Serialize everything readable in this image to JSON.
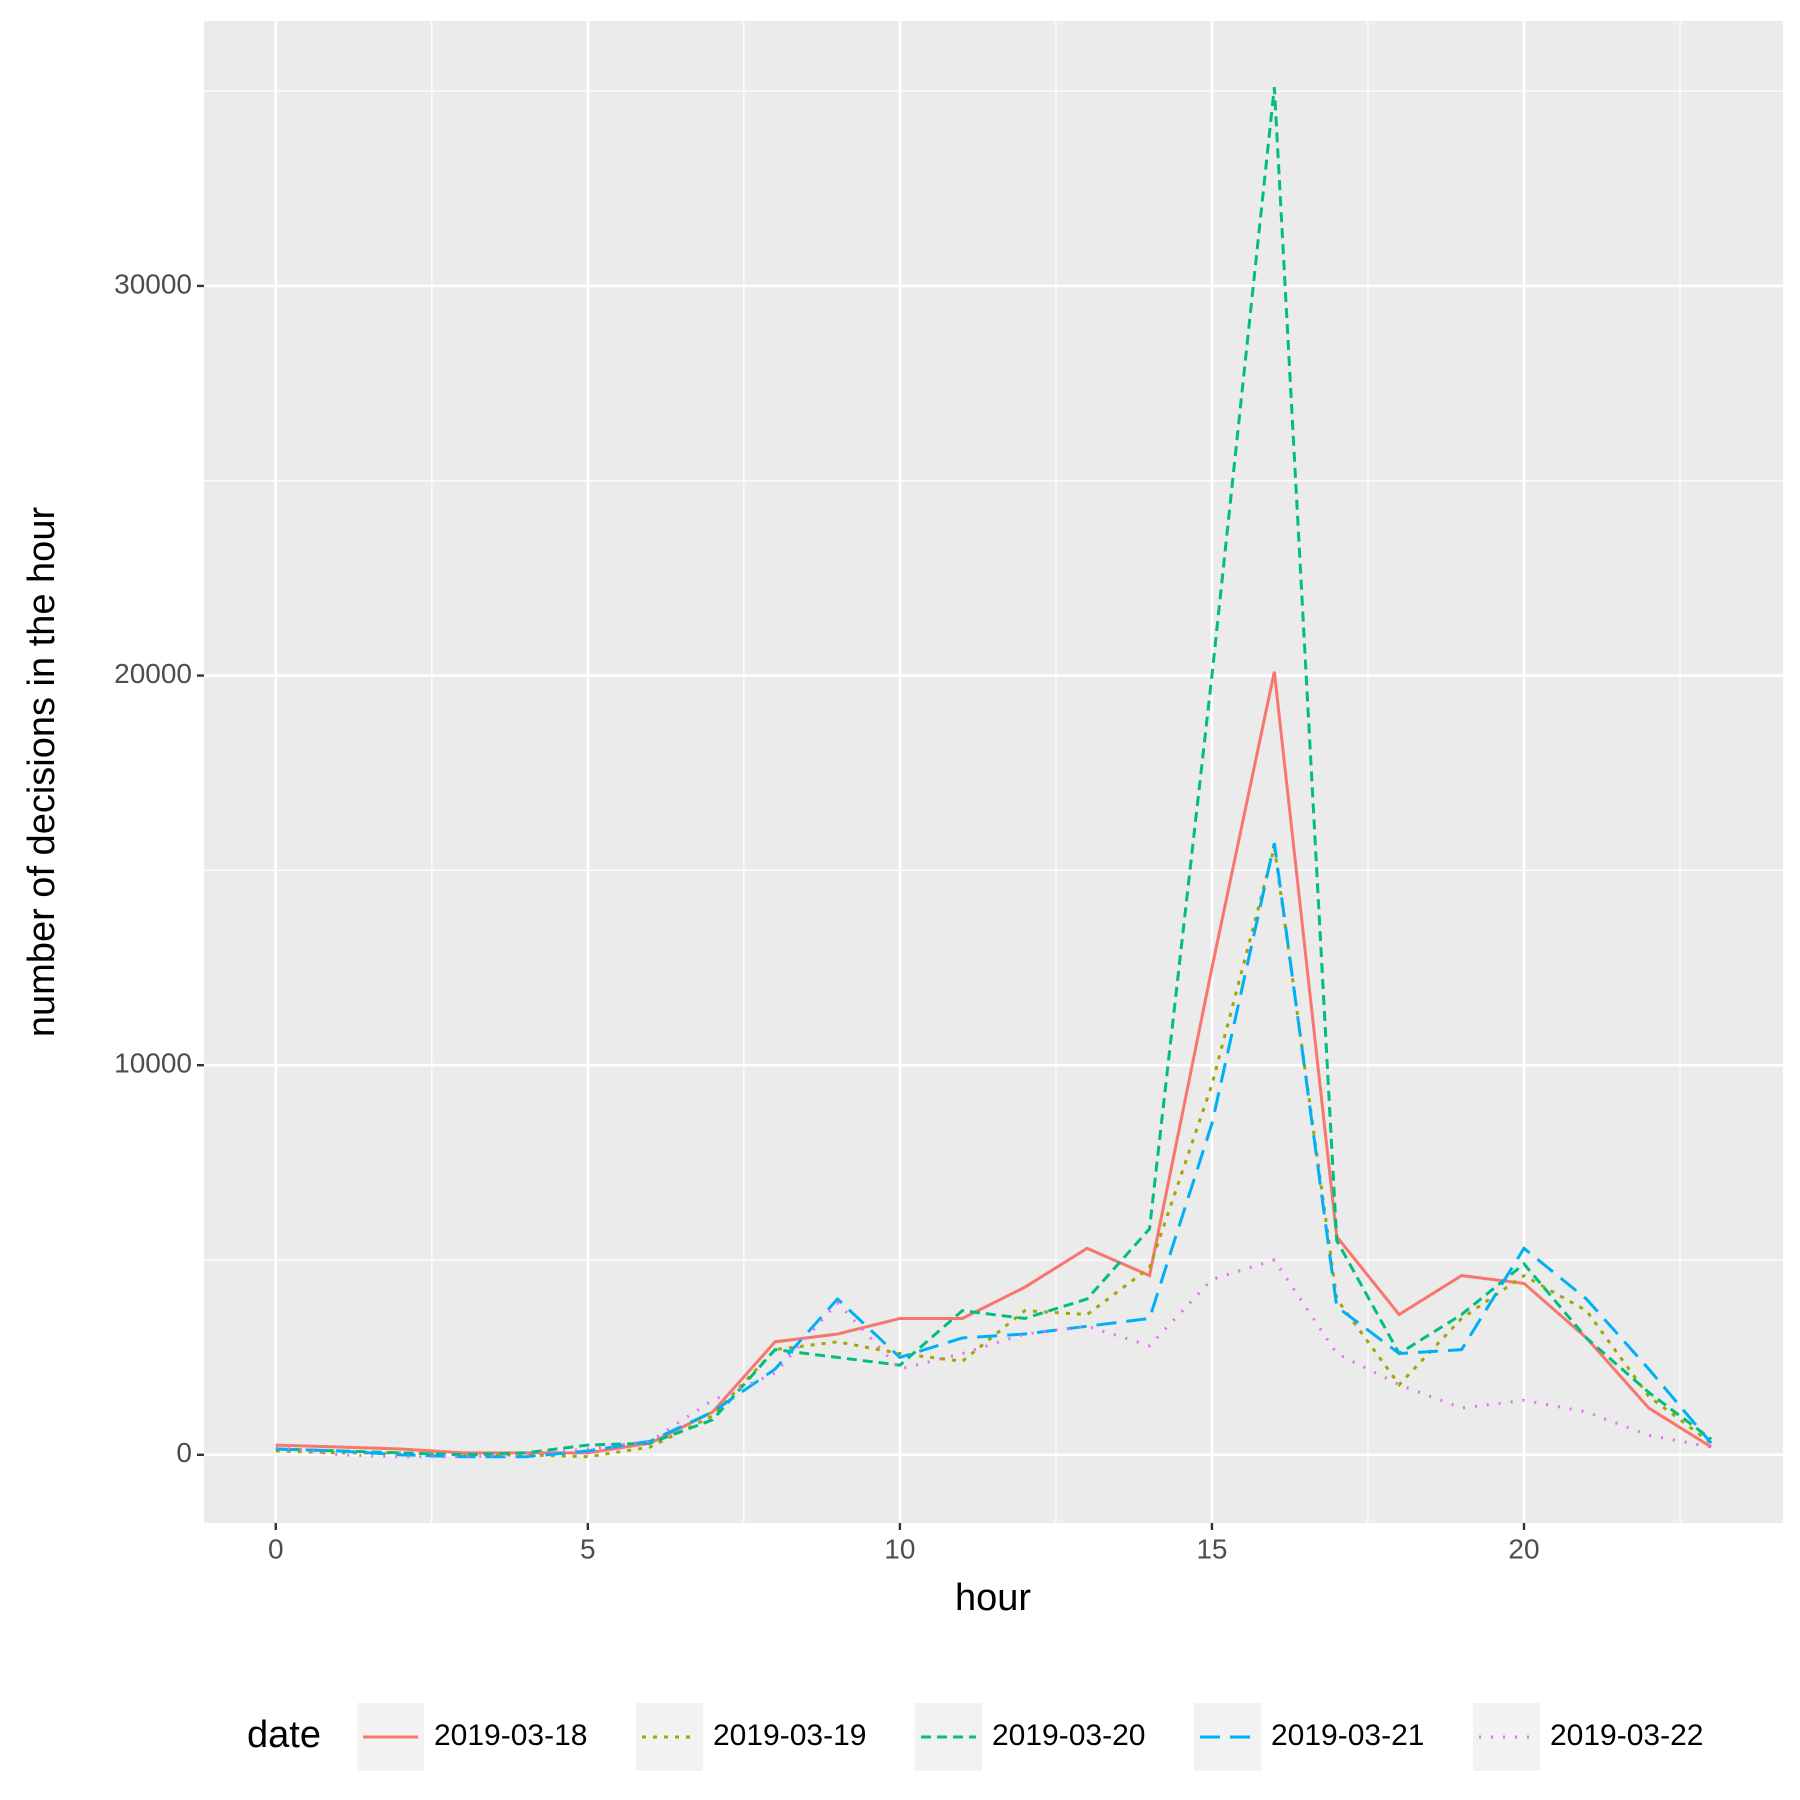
{
  "chart_data": {
    "type": "line",
    "x_label": "hour",
    "y_label": "number of decisions in the hour",
    "legend_title": "date",
    "legend_position": "bottom",
    "grid": true,
    "x": [
      0,
      1,
      2,
      3,
      4,
      5,
      6,
      7,
      8,
      9,
      10,
      11,
      12,
      13,
      14,
      15,
      16,
      17,
      18,
      19,
      20,
      21,
      22,
      23
    ],
    "xlim": [
      -1.15,
      24.15
    ],
    "xticks": [
      0,
      5,
      10,
      15,
      20
    ],
    "ylim": [
      -1750,
      36800
    ],
    "yticks": [
      0,
      10000,
      20000,
      30000
    ],
    "series": [
      {
        "name": "2019-03-18",
        "color": "#f8766d",
        "dash": "solid",
        "values": [
          250,
          200,
          150,
          50,
          50,
          50,
          300,
          1100,
          2900,
          3100,
          3500,
          3500,
          4300,
          5300,
          4600,
          12500,
          20100,
          5600,
          3600,
          4600,
          4400,
          3000,
          1200,
          200
        ]
      },
      {
        "name": "2019-03-19",
        "color": "#a3a500",
        "dash": "dotted",
        "values": [
          100,
          50,
          50,
          0,
          0,
          -50,
          200,
          1000,
          2700,
          2900,
          2600,
          2400,
          3700,
          3600,
          4800,
          9500,
          15600,
          4000,
          1800,
          3500,
          4600,
          3700,
          1500,
          300
        ]
      },
      {
        "name": "2019-03-20",
        "color": "#00bf7d",
        "dash": "dashed",
        "values": [
          150,
          100,
          50,
          0,
          50,
          250,
          300,
          900,
          2700,
          2500,
          2300,
          3700,
          3500,
          4000,
          5800,
          20000,
          35100,
          5500,
          2600,
          3600,
          4900,
          3000,
          1600,
          400
        ]
      },
      {
        "name": "2019-03-21",
        "color": "#00b0f6",
        "dash": "longdash",
        "values": [
          150,
          100,
          0,
          -50,
          -50,
          100,
          350,
          1100,
          2200,
          4000,
          2500,
          3000,
          3100,
          3300,
          3500,
          8500,
          15700,
          3800,
          2600,
          2700,
          5300,
          4000,
          2200,
          300
        ]
      },
      {
        "name": "2019-03-22",
        "color": "#e76bf3",
        "dash": "dotted-sparse",
        "values": [
          200,
          0,
          -50,
          -50,
          0,
          150,
          350,
          1400,
          2100,
          3900,
          2200,
          2600,
          3100,
          3300,
          2800,
          4500,
          5000,
          2600,
          1800,
          1200,
          1400,
          1100,
          500,
          200
        ]
      }
    ]
  }
}
